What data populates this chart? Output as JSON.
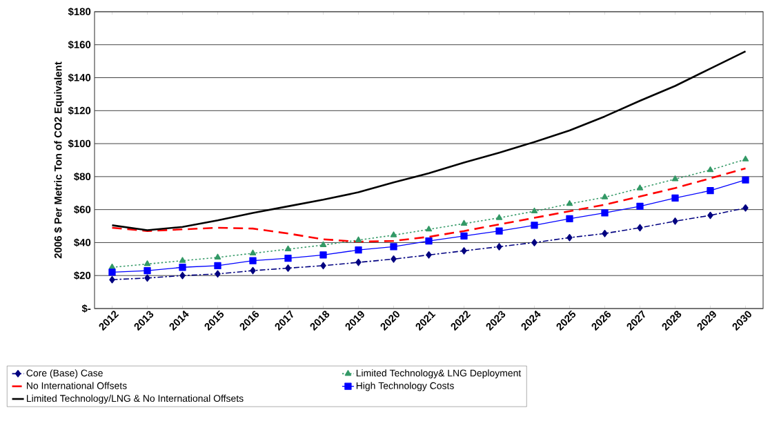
{
  "chart_data": {
    "type": "line",
    "ylabel": "2006 $ Per Metric Ton of CO2 Equivalent",
    "categories": [
      "2012",
      "2013",
      "2014",
      "2015",
      "2016",
      "2017",
      "2018",
      "2019",
      "2020",
      "2021",
      "2022",
      "2023",
      "2024",
      "2025",
      "2026",
      "2027",
      "2028",
      "2029",
      "2030"
    ],
    "ylim": [
      0,
      180
    ],
    "yticks": [
      {
        "value": 0,
        "label": "$-"
      },
      {
        "value": 20,
        "label": "$20"
      },
      {
        "value": 40,
        "label": "$40"
      },
      {
        "value": 60,
        "label": "$60"
      },
      {
        "value": 80,
        "label": "$80"
      },
      {
        "value": 100,
        "label": "$100"
      },
      {
        "value": 120,
        "label": "$120"
      },
      {
        "value": 140,
        "label": "$140"
      },
      {
        "value": 160,
        "label": "$160"
      },
      {
        "value": 180,
        "label": "$180"
      }
    ],
    "grid": "y",
    "legend": "bottom",
    "series": [
      {
        "name": "Core (Base) Case",
        "color": "#000080",
        "marker": "diamond",
        "line_style": "dashdot",
        "values": [
          17.5,
          18.5,
          20,
          21,
          23,
          24.5,
          26,
          28,
          30,
          32.5,
          35,
          37.5,
          40,
          43,
          45.5,
          49,
          53,
          56.5,
          61
        ]
      },
      {
        "name": "Limited Technology& LNG Deployment",
        "color": "#339966",
        "marker": "triangle",
        "line_style": "dotted",
        "values": [
          25,
          27,
          29,
          31,
          33.5,
          36,
          38.5,
          41.5,
          44.5,
          48,
          51.5,
          55,
          59,
          63.5,
          67.5,
          73,
          78.5,
          84,
          90.5
        ]
      },
      {
        "name": "No International Offsets",
        "color": "#ff0000",
        "marker": "none",
        "line_style": "dashed",
        "values": [
          49,
          47,
          48,
          49,
          48.5,
          45.5,
          42,
          40.5,
          41,
          43.5,
          47,
          51,
          55,
          59,
          63,
          68,
          73,
          79,
          85
        ]
      },
      {
        "name": "High Technology Costs",
        "color": "#0000ff",
        "marker": "square",
        "line_style": "solid",
        "values": [
          22,
          23,
          25,
          26,
          29,
          30.5,
          32.5,
          35.5,
          37.5,
          41,
          44,
          47,
          50.5,
          54.5,
          58,
          62,
          67,
          71.5,
          78
        ]
      },
      {
        "name": "Limited Technology/LNG & No International Offsets",
        "color": "#000000",
        "marker": "none",
        "line_style": "solid",
        "values": [
          50.5,
          47.5,
          49.5,
          53.5,
          58,
          62,
          66,
          70.5,
          76.5,
          82,
          88.5,
          94.5,
          101,
          108,
          116.5,
          126,
          135,
          145.5,
          156
        ]
      }
    ]
  }
}
